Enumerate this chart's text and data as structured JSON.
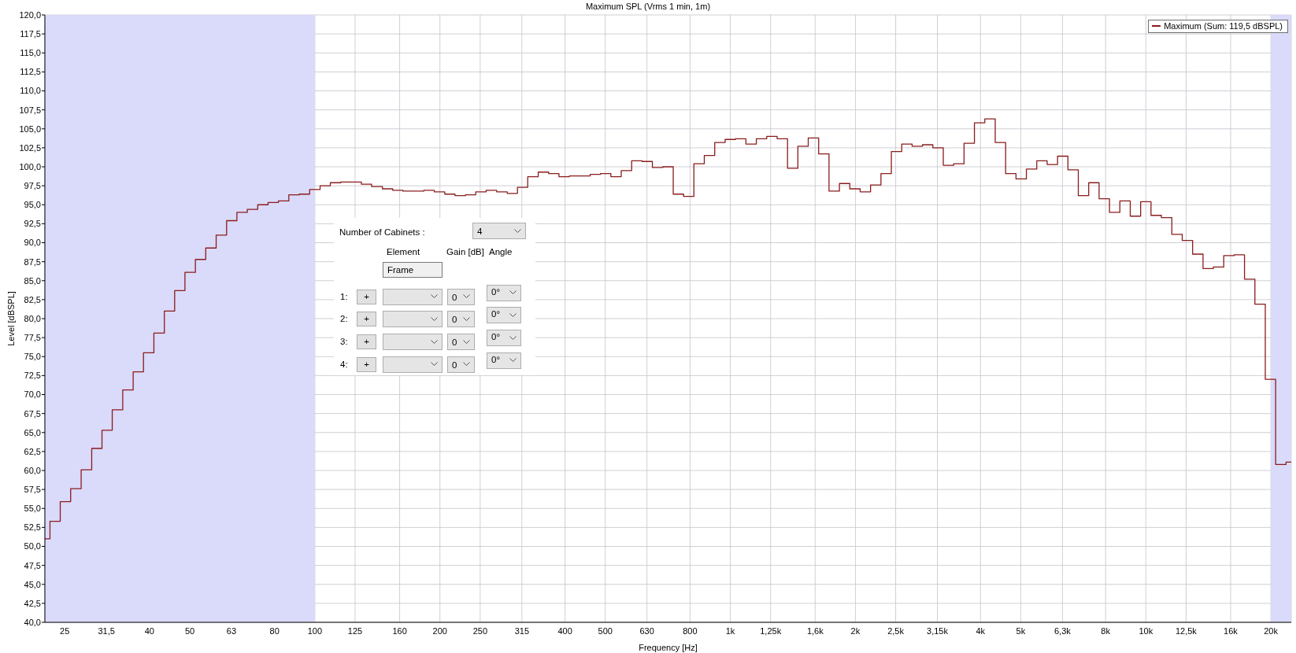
{
  "chart_data": {
    "type": "step",
    "title": "Maximum SPL (Vrms 1 min, 1m)",
    "xlabel": "Frequency [Hz]",
    "ylabel": "Level [dBSPL]",
    "log": "x",
    "grid": true,
    "legend": "top right",
    "xlim": [
      22.4,
      22390
    ],
    "ylim": [
      40,
      120
    ],
    "xticks": [
      25,
      {
        "value": 31.5,
        "label": "31,5"
      },
      40,
      50,
      63,
      80,
      100,
      125,
      160,
      200,
      250,
      315,
      400,
      500,
      630,
      800,
      {
        "value": 1000,
        "label": "1k"
      },
      {
        "value": 1250,
        "label": "1,25k"
      },
      {
        "value": 1600,
        "label": "1,6k"
      },
      {
        "value": 2000,
        "label": "2k"
      },
      {
        "value": 2500,
        "label": "2,5k"
      },
      {
        "value": 3150,
        "label": "3,15k"
      },
      {
        "value": 4000,
        "label": "4k"
      },
      {
        "value": 5000,
        "label": "5k"
      },
      {
        "value": 6300,
        "label": "6,3k"
      },
      {
        "value": 8000,
        "label": "8k"
      },
      {
        "value": 10000,
        "label": "10k"
      },
      {
        "value": 12500,
        "label": "12,5k"
      },
      {
        "value": 16000,
        "label": "16k"
      },
      {
        "value": 20000,
        "label": "20k"
      }
    ],
    "yticks": [
      {
        "value": 40,
        "label": "40,0"
      },
      {
        "value": 42.5,
        "label": "42,5"
      },
      {
        "value": 45,
        "label": "45,0"
      },
      {
        "value": 47.5,
        "label": "47,5"
      },
      {
        "value": 50,
        "label": "50,0"
      },
      {
        "value": 52.5,
        "label": "52,5"
      },
      {
        "value": 55,
        "label": "55,0"
      },
      {
        "value": 57.5,
        "label": "57,5"
      },
      {
        "value": 60,
        "label": "60,0"
      },
      {
        "value": 62.5,
        "label": "62,5"
      },
      {
        "value": 65,
        "label": "65,0"
      },
      {
        "value": 67.5,
        "label": "67,5"
      },
      {
        "value": 70,
        "label": "70,0"
      },
      {
        "value": 72.5,
        "label": "72,5"
      },
      {
        "value": 75,
        "label": "75,0"
      },
      {
        "value": 77.5,
        "label": "77,5"
      },
      {
        "value": 80,
        "label": "80,0"
      },
      {
        "value": 82.5,
        "label": "82,5"
      },
      {
        "value": 85,
        "label": "85,0"
      },
      {
        "value": 87.5,
        "label": "87,5"
      },
      {
        "value": 90,
        "label": "90,0"
      },
      {
        "value": 92.5,
        "label": "92,5"
      },
      {
        "value": 95,
        "label": "95,0"
      },
      {
        "value": 97.5,
        "label": "97,5"
      },
      {
        "value": 100,
        "label": "100,0"
      },
      {
        "value": 102.5,
        "label": "102,5"
      },
      {
        "value": 105,
        "label": "105,0"
      },
      {
        "value": 107.5,
        "label": "107,5"
      },
      {
        "value": 110,
        "label": "110,0"
      },
      {
        "value": 112.5,
        "label": "112,5"
      },
      {
        "value": 115,
        "label": "115,0"
      },
      {
        "value": 117.5,
        "label": "117,5"
      },
      {
        "value": 120,
        "label": "120,0"
      }
    ],
    "bands": [
      {
        "axis": "x",
        "from": 22.4,
        "to": 100,
        "color": "#dadafa"
      },
      {
        "axis": "x",
        "from": 20000,
        "to": 22390,
        "color": "#dadafa"
      }
    ],
    "annotations": [
      "Number of Cabinets :",
      "4",
      "Element",
      "Gain [dB]",
      "Angle",
      "Frame",
      "1:",
      "+",
      "0",
      "0°",
      "2:",
      "+",
      "0",
      "0°",
      "3:",
      "+",
      "0",
      "0°",
      "4:",
      "+",
      "0",
      "0°"
    ],
    "x": [
      22.4,
      23.7,
      25.1,
      26.6,
      28.2,
      29.9,
      31.6,
      33.5,
      35.5,
      37.6,
      39.8,
      42.2,
      44.7,
      47.3,
      50.1,
      53.1,
      56.2,
      59.6,
      63.1,
      66.8,
      70.8,
      75.0,
      79.4,
      84.1,
      89.1,
      94.4,
      100,
      106,
      112,
      119,
      126,
      133,
      141,
      150,
      158,
      168,
      178,
      188,
      200,
      211,
      224,
      237,
      251,
      266,
      282,
      299,
      316,
      335,
      355,
      376,
      398,
      422,
      447,
      473,
      501,
      531,
      562,
      596,
      631,
      668,
      708,
      750,
      794,
      841,
      891,
      944,
      1000,
      1059,
      1122,
      1189,
      1259,
      1334,
      1413,
      1496,
      1585,
      1679,
      1778,
      1884,
      1995,
      2113,
      2239,
      2371,
      2512,
      2661,
      2818,
      2985,
      3162,
      3350,
      3548,
      3758,
      3981,
      4217,
      4467,
      4732,
      5012,
      5309,
      5623,
      5957,
      6310,
      6683,
      7079,
      7499,
      7943,
      8414,
      8913,
      9441,
      10000,
      10590,
      11220,
      11890,
      12590,
      13340,
      14130,
      14960,
      15850,
      16790,
      17780,
      18840,
      19950,
      21130,
      22390
    ],
    "series": [
      {
        "name": "Maximum (Sum: 119,5 dBSPL)",
        "color": "#8a1c1c",
        "values": [
          51.0,
          53.3,
          55.9,
          57.6,
          60.1,
          62.9,
          65.3,
          68.0,
          70.6,
          73.0,
          75.5,
          78.1,
          81.0,
          83.7,
          86.1,
          87.8,
          89.3,
          91.0,
          92.9,
          94.0,
          94.4,
          95.0,
          95.3,
          95.5,
          96.3,
          96.4,
          97.0,
          97.5,
          97.9,
          98.0,
          98.0,
          97.7,
          97.4,
          97.1,
          96.9,
          96.8,
          96.8,
          96.9,
          96.7,
          96.4,
          96.2,
          96.3,
          96.7,
          96.9,
          96.7,
          96.5,
          97.3,
          98.7,
          99.3,
          99.1,
          98.7,
          98.8,
          98.8,
          99.0,
          99.1,
          98.7,
          99.5,
          100.8,
          100.7,
          99.9,
          100.0,
          96.4,
          96.1,
          100.4,
          101.5,
          103.2,
          103.6,
          103.7,
          103.0,
          103.7,
          104.0,
          103.7,
          99.8,
          102.7,
          103.8,
          101.7,
          96.8,
          97.8,
          97.1,
          96.7,
          97.6,
          99.1,
          102.0,
          103.0,
          102.7,
          102.9,
          102.5,
          100.2,
          100.4,
          103.1,
          105.8,
          106.3,
          103.2,
          99.1,
          98.4,
          99.7,
          100.8,
          100.3,
          101.4,
          99.6,
          96.2,
          97.9,
          95.8,
          94.0,
          95.5,
          93.5,
          95.4,
          93.6,
          93.3,
          91.1,
          90.3,
          88.5,
          86.6,
          86.8,
          88.3,
          88.4,
          85.2,
          81.9,
          72.0,
          60.8,
          61.1
        ]
      }
    ]
  }
}
